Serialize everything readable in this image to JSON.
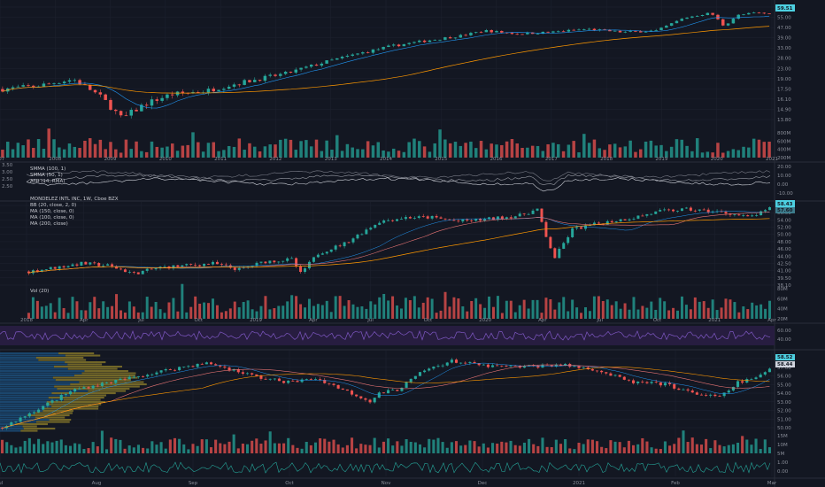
{
  "chart_data": [
    {
      "panel": "top",
      "type": "candlestick",
      "title": "",
      "x_ticks": [
        "007",
        "2008",
        "2009",
        "2010",
        "2011",
        "2012",
        "2013",
        "2014",
        "2015",
        "2016",
        "2017",
        "2018",
        "2019",
        "2020",
        "2021"
      ],
      "y_ticks": [
        "65.00",
        "55.00",
        "47.00",
        "39.00",
        "33.00",
        "28.00",
        "23.00",
        "19.00",
        "17.50",
        "16.10",
        "14.90",
        "13.80"
      ],
      "price_path": [
        [
          0,
          21
        ],
        [
          40,
          22
        ],
        [
          80,
          24
        ],
        [
          110,
          19
        ],
        [
          135,
          13.8
        ],
        [
          160,
          17
        ],
        [
          190,
          19.5
        ],
        [
          230,
          20.5
        ],
        [
          270,
          23
        ],
        [
          320,
          26
        ],
        [
          360,
          30
        ],
        [
          400,
          34
        ],
        [
          440,
          38
        ],
        [
          480,
          41
        ],
        [
          520,
          44
        ],
        [
          545,
          47
        ],
        [
          580,
          45
        ],
        [
          620,
          46
        ],
        [
          660,
          48
        ],
        [
          700,
          46
        ],
        [
          740,
          47
        ],
        [
          770,
          56
        ],
        [
          800,
          60
        ],
        [
          815,
          50
        ],
        [
          830,
          58
        ],
        [
          850,
          60
        ],
        [
          872,
          59
        ]
      ],
      "ma_path": [
        [
          0,
          22
        ],
        [
          120,
          18.5
        ],
        [
          200,
          19
        ],
        [
          300,
          21
        ],
        [
          400,
          26
        ],
        [
          500,
          33
        ],
        [
          600,
          40
        ],
        [
          700,
          44
        ],
        [
          800,
          49
        ],
        [
          872,
          51
        ]
      ],
      "volume_ticks": [
        "800M",
        "600M",
        "400M",
        "200M"
      ],
      "last_price": "59.51"
    },
    {
      "panel": "indicator",
      "type": "line",
      "legend": [
        "SMMA (100, 1)",
        "SMMA (50, 1)",
        "ATR (14, RMA)"
      ],
      "y_ticks_left": [
        "3.50",
        "3.00",
        "2.50",
        "2.50"
      ],
      "y_ticks_right": [
        "20.00",
        "10.00",
        "0.00",
        "-10.00"
      ]
    },
    {
      "panel": "middle",
      "type": "candlestick",
      "legend": [
        "MONDELEZ INTL INC, 1W, Cboe BZX",
        "BB (20, close, 2, 0)",
        "MA (150, close, 0)",
        "MA (100, close, 0)",
        "MA (200, close)"
      ],
      "x_ticks": [
        "2018",
        "Apr",
        "Jul",
        "Oct",
        "2019",
        "Apr",
        "Jul",
        "Oct",
        "2020",
        "Apr",
        "Jul",
        "Oct",
        "2021",
        "Apr"
      ],
      "y_ticks": [
        "58.00",
        "56.00",
        "54.00",
        "52.00",
        "50.00",
        "48.00",
        "46.00",
        "44.00",
        "42.50",
        "41.00",
        "39.50",
        "38.10"
      ],
      "price_path": [
        [
          0,
          41.5
        ],
        [
          30,
          42.5
        ],
        [
          60,
          43.5
        ],
        [
          90,
          43
        ],
        [
          120,
          41
        ],
        [
          150,
          42.5
        ],
        [
          180,
          43
        ],
        [
          210,
          43.5
        ],
        [
          240,
          42
        ],
        [
          270,
          44
        ],
        [
          300,
          44.5
        ],
        [
          310,
          41
        ],
        [
          330,
          46
        ],
        [
          360,
          48.5
        ],
        [
          400,
          54
        ],
        [
          430,
          55
        ],
        [
          460,
          55
        ],
        [
          490,
          54
        ],
        [
          520,
          54.5
        ],
        [
          560,
          55.5
        ],
        [
          580,
          57
        ],
        [
          590,
          50
        ],
        [
          600,
          45
        ],
        [
          620,
          52
        ],
        [
          650,
          53.5
        ],
        [
          690,
          55
        ],
        [
          720,
          56.5
        ],
        [
          750,
          57
        ],
        [
          780,
          56.5
        ],
        [
          800,
          56
        ],
        [
          820,
          55
        ],
        [
          840,
          56.5
        ],
        [
          850,
          58
        ]
      ],
      "volume_ticks": [
        "80M",
        "60M",
        "40M",
        "20M"
      ],
      "last_price": "58.43",
      "last_price_2": "57.60"
    },
    {
      "panel": "rsi",
      "type": "line",
      "y_ticks": [
        "60.00",
        "40.00"
      ]
    },
    {
      "panel": "bottom",
      "type": "candlestick",
      "x_ticks": [
        "Jul",
        "Aug",
        "Sep",
        "Oct",
        "Nov",
        "Dec",
        "2021",
        "Feb",
        "Mar"
      ],
      "y_ticks": [
        "58.00",
        "57.00",
        "56.00",
        "55.00",
        "54.00",
        "53.00",
        "52.00",
        "51.00",
        "50.00"
      ],
      "price_path": [
        [
          0,
          49.5
        ],
        [
          40,
          52
        ],
        [
          80,
          54.5
        ],
        [
          120,
          55.5
        ],
        [
          160,
          56.5
        ],
        [
          200,
          57.5
        ],
        [
          230,
          58
        ],
        [
          260,
          57
        ],
        [
          290,
          56
        ],
        [
          320,
          55.5
        ],
        [
          350,
          56
        ],
        [
          380,
          54.5
        ],
        [
          410,
          53
        ],
        [
          420,
          54
        ],
        [
          440,
          54.5
        ],
        [
          470,
          57
        ],
        [
          500,
          58.3
        ],
        [
          540,
          57.6
        ],
        [
          580,
          57.5
        ],
        [
          620,
          57.8
        ],
        [
          660,
          57.2
        ],
        [
          700,
          55.5
        ],
        [
          740,
          55.2
        ],
        [
          770,
          54
        ],
        [
          800,
          53.5
        ],
        [
          820,
          55.5
        ],
        [
          840,
          56
        ],
        [
          860,
          57.8
        ]
      ],
      "volume_ticks": [
        "15M",
        "10M",
        "5M"
      ],
      "osc_ticks": [
        "1.00",
        "0.00"
      ],
      "last_price": "58.52",
      "last_price_2": "58.44"
    }
  ],
  "colors": {
    "background": "#131722",
    "up": "#26a69a",
    "down": "#ef5350",
    "ma_orange": "#ff9800",
    "bb_blue": "#2196f3",
    "rsi_purple": "#7e57c2",
    "badge": "#4dd0e1",
    "volume_profile_blue": "#1e5a8c",
    "volume_profile_yellow": "#8a7a2a"
  }
}
